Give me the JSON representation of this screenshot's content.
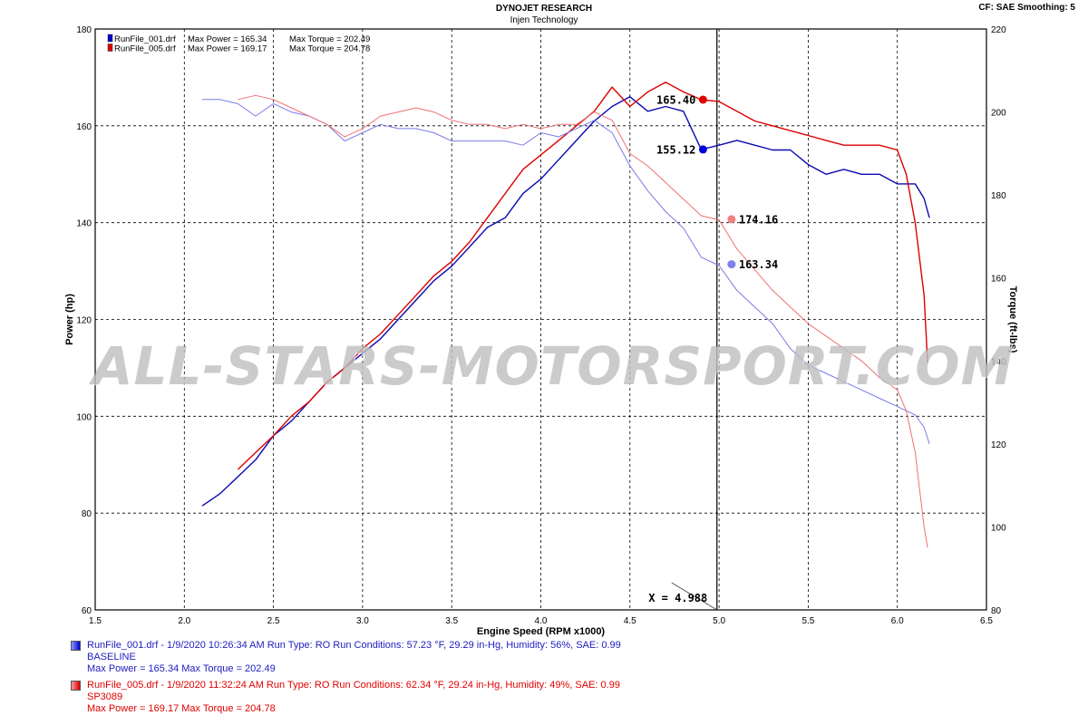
{
  "header": {
    "title": "DYNOJET RESEARCH",
    "subtitle": "Injen Technology",
    "cf": "CF: SAE  Smoothing: 5"
  },
  "watermark": "ALL-STARS-MOTORSPORT.COM",
  "legend_top": [
    {
      "file": "RunFile_001.drf",
      "power": "Max Power = 165.34",
      "torque": "Max Torque = 202.49",
      "color": "#0000cc"
    },
    {
      "file": "RunFile_005.drf",
      "power": "Max Power = 169.17",
      "torque": "Max Torque = 204.78",
      "color": "#dd0000"
    }
  ],
  "runs": [
    {
      "line1": "RunFile_001.drf - 1/9/2020 10:26:34 AM  Run Type: RO  Run Conditions: 57.23 °F, 29.29 in-Hg,  Humidity:  56%, SAE: 0.99",
      "line2": "BASELINE",
      "line3": "Max Power = 165.34  Max Torque = 202.49"
    },
    {
      "line1": "RunFile_005.drf - 1/9/2020 11:32:24 AM  Run Type: RO  Run Conditions: 62.34 °F, 29.24 in-Hg,  Humidity:  49%, SAE: 0.99",
      "line2": "SP3089",
      "line3": "Max Power = 169.17  Max Torque = 204.78"
    }
  ],
  "chart_data": {
    "type": "line",
    "xlabel": "Engine Speed (RPM x1000)",
    "ylabel": "Power (hp)",
    "y2label": "Torque (ft-lbs)",
    "xlim": [
      1.5,
      6.5
    ],
    "ylim": [
      60,
      180
    ],
    "y2lim": [
      80,
      220
    ],
    "xticks": [
      "1.5",
      "2.0",
      "2.5",
      "3.0",
      "3.5",
      "4.0",
      "4.5",
      "5.0",
      "5.5",
      "6.0",
      "6.5"
    ],
    "yticks": [
      "60",
      "80",
      "100",
      "120",
      "140",
      "160",
      "180"
    ],
    "y2ticks": [
      "80",
      "100",
      "120",
      "140",
      "160",
      "180",
      "200",
      "220"
    ],
    "grid": true,
    "cursor": {
      "x": 4.988,
      "label": "X = 4.988"
    },
    "markers": [
      {
        "label": "165.40",
        "x": 4.91,
        "y": 165.4,
        "color": "#e00000"
      },
      {
        "label": "155.12",
        "x": 4.91,
        "y": 155.12,
        "color": "#0000dd"
      },
      {
        "label": "174.16",
        "x": 5.07,
        "y": 140.7,
        "color": "#f08080"
      },
      {
        "label": "163.34",
        "x": 5.07,
        "y": 131.4,
        "color": "#8080ee"
      }
    ],
    "series": [
      {
        "name": "RunFile_001.drf Power",
        "axis": "left",
        "color": "#0a0ab0",
        "width": 1.4,
        "x": [
          2.1,
          2.2,
          2.3,
          2.4,
          2.5,
          2.6,
          2.7,
          2.8,
          2.9,
          3.0,
          3.1,
          3.2,
          3.3,
          3.4,
          3.5,
          3.6,
          3.7,
          3.8,
          3.9,
          4.0,
          4.1,
          4.2,
          4.3,
          4.4,
          4.5,
          4.6,
          4.7,
          4.8,
          4.9,
          5.0,
          5.1,
          5.2,
          5.3,
          5.4,
          5.5,
          5.6,
          5.7,
          5.8,
          5.9,
          6.0,
          6.1,
          6.15,
          6.18
        ],
        "y": [
          81.5,
          84,
          87.5,
          91,
          96,
          99,
          103,
          107,
          110,
          113,
          116,
          120,
          124,
          128,
          131,
          135,
          139,
          141,
          146,
          149,
          153,
          157,
          161,
          164,
          166,
          163,
          164,
          163,
          155.12,
          156,
          157,
          156,
          155,
          155,
          152,
          150,
          151,
          150,
          150,
          148,
          148,
          145,
          141
        ]
      },
      {
        "name": "RunFile_005.drf Power",
        "axis": "left",
        "color": "#dd0000",
        "width": 1.4,
        "x": [
          2.3,
          2.4,
          2.5,
          2.6,
          2.7,
          2.8,
          2.9,
          3.0,
          3.1,
          3.2,
          3.3,
          3.4,
          3.5,
          3.6,
          3.7,
          3.8,
          3.9,
          4.0,
          4.1,
          4.2,
          4.3,
          4.4,
          4.5,
          4.6,
          4.7,
          4.8,
          4.9,
          5.0,
          5.1,
          5.2,
          5.3,
          5.4,
          5.5,
          5.6,
          5.7,
          5.8,
          5.9,
          6.0,
          6.05,
          6.1,
          6.15,
          6.17
        ],
        "y": [
          89,
          92.5,
          96,
          100,
          103,
          107,
          110,
          114,
          117,
          121,
          125,
          129,
          132,
          136,
          141,
          146,
          151,
          154,
          157,
          160,
          163,
          168,
          164,
          167,
          169,
          167,
          165.4,
          165,
          163,
          161,
          160,
          159,
          158,
          157,
          156,
          156,
          156,
          155,
          150,
          140,
          125,
          111
        ]
      },
      {
        "name": "RunFile_001.drf Torque",
        "axis": "right",
        "color": "#7a7ae8",
        "width": 1.0,
        "x": [
          2.1,
          2.2,
          2.3,
          2.4,
          2.5,
          2.6,
          2.7,
          2.8,
          2.9,
          3.0,
          3.1,
          3.2,
          3.3,
          3.4,
          3.5,
          3.6,
          3.7,
          3.8,
          3.9,
          4.0,
          4.1,
          4.2,
          4.3,
          4.4,
          4.5,
          4.6,
          4.7,
          4.8,
          4.9,
          5.0,
          5.1,
          5.2,
          5.3,
          5.4,
          5.5,
          5.6,
          5.7,
          5.8,
          5.9,
          6.0,
          6.1,
          6.15,
          6.18
        ],
        "y": [
          203,
          203,
          202,
          199,
          202,
          200,
          199,
          197,
          193,
          195,
          197,
          196,
          196,
          195,
          193,
          193,
          193,
          193,
          192,
          195,
          194,
          196,
          198,
          195,
          187,
          181,
          176,
          172,
          165,
          163,
          157,
          153,
          149,
          143,
          139,
          137,
          135,
          133,
          131,
          129,
          127,
          124,
          120
        ]
      },
      {
        "name": "RunFile_005.drf Torque",
        "axis": "right",
        "color": "#f07070",
        "width": 1.0,
        "x": [
          2.3,
          2.4,
          2.5,
          2.6,
          2.7,
          2.8,
          2.9,
          3.0,
          3.1,
          3.2,
          3.3,
          3.4,
          3.5,
          3.6,
          3.7,
          3.8,
          3.9,
          4.0,
          4.1,
          4.2,
          4.3,
          4.4,
          4.5,
          4.6,
          4.7,
          4.8,
          4.9,
          5.0,
          5.1,
          5.2,
          5.3,
          5.4,
          5.5,
          5.6,
          5.7,
          5.8,
          5.9,
          6.0,
          6.05,
          6.1,
          6.15,
          6.17
        ],
        "y": [
          203,
          204,
          203,
          201,
          199,
          197,
          194,
          196,
          199,
          200,
          201,
          200,
          198,
          197,
          197,
          196,
          197,
          196,
          197,
          197,
          200,
          198,
          190,
          187,
          183,
          179,
          175,
          174,
          167,
          162,
          157,
          153,
          149,
          146,
          143,
          140,
          136,
          133,
          128,
          118,
          100,
          95
        ]
      }
    ]
  }
}
